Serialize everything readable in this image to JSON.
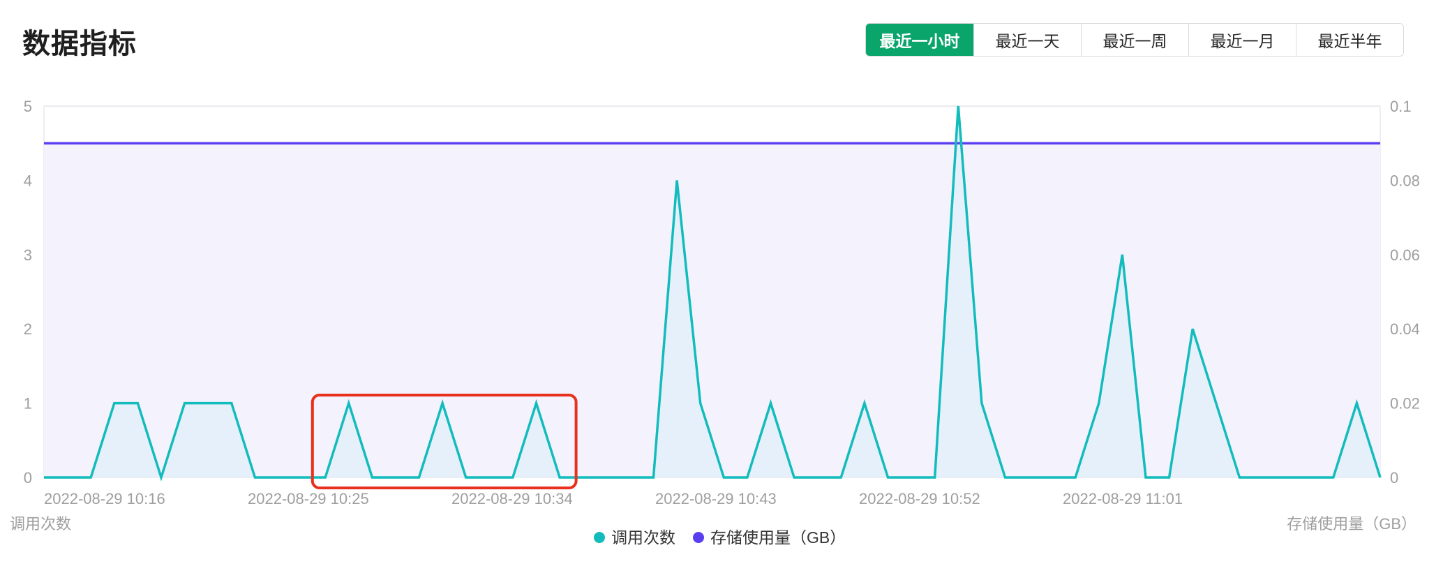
{
  "header": {
    "title": "数据指标"
  },
  "range_tabs": [
    {
      "label": "最近一小时",
      "active": true
    },
    {
      "label": "最近一天",
      "active": false
    },
    {
      "label": "最近一周",
      "active": false
    },
    {
      "label": "最近一月",
      "active": false
    },
    {
      "label": "最近半年",
      "active": false
    }
  ],
  "colors": {
    "accent": "#0aa56b",
    "calls_line": "#12bcbc",
    "calls_fill": "#e6f0fb",
    "storage_line": "#5a3ff0",
    "storage_fill": "#f4f2fd",
    "highlight_box": "#e8301c",
    "grid": "#e8e8ee"
  },
  "chart_data": {
    "type": "line",
    "x_ticks": [
      "2022-08-29 10:16",
      "2022-08-29 10:25",
      "2022-08-29 10:34",
      "2022-08-29 10:43",
      "2022-08-29 10:52",
      "2022-08-29 11:01"
    ],
    "y_left": {
      "label": "调用次数",
      "range": [
        0,
        5
      ],
      "ticks": [
        "0",
        "1",
        "2",
        "3",
        "4",
        "5"
      ]
    },
    "y_right": {
      "label": "存储使用量（GB）",
      "range": [
        0,
        0.1
      ],
      "ticks": [
        "0",
        "0.02",
        "0.04",
        "0.06",
        "0.08",
        "0.1"
      ]
    },
    "legend_position": "bottom-center",
    "grid": true,
    "series": [
      {
        "name": "调用次数",
        "axis": "left",
        "color": "#12bcbc",
        "values": [
          0,
          0,
          0,
          1,
          1,
          0,
          1,
          1,
          1,
          0,
          0,
          0,
          0,
          1,
          0,
          0,
          0,
          1,
          0,
          0,
          0,
          1,
          0,
          0,
          0,
          0,
          0,
          4,
          1,
          0,
          0,
          1,
          0,
          0,
          0,
          1,
          0,
          0,
          0,
          5,
          1,
          0,
          0,
          0,
          0,
          1,
          3,
          0,
          0,
          2,
          1,
          0,
          0,
          0,
          0,
          0,
          1,
          0
        ]
      },
      {
        "name": "存储使用量（GB）",
        "axis": "right",
        "color": "#5a3ff0",
        "values": [
          0.09,
          0.09,
          0.09,
          0.09,
          0.09,
          0.09,
          0.09,
          0.09,
          0.09,
          0.09,
          0.09,
          0.09,
          0.09,
          0.09,
          0.09,
          0.09,
          0.09,
          0.09,
          0.09,
          0.09,
          0.09,
          0.09,
          0.09,
          0.09,
          0.09,
          0.09,
          0.09,
          0.09,
          0.09,
          0.09,
          0.09,
          0.09,
          0.09,
          0.09,
          0.09,
          0.09,
          0.09,
          0.09,
          0.09,
          0.09,
          0.09,
          0.09,
          0.09,
          0.09,
          0.09,
          0.09,
          0.09,
          0.09,
          0.09,
          0.09,
          0.09,
          0.09,
          0.09,
          0.09,
          0.09,
          0.09,
          0.09,
          0.09
        ]
      }
    ],
    "highlight_points": [
      13,
      21
    ]
  }
}
